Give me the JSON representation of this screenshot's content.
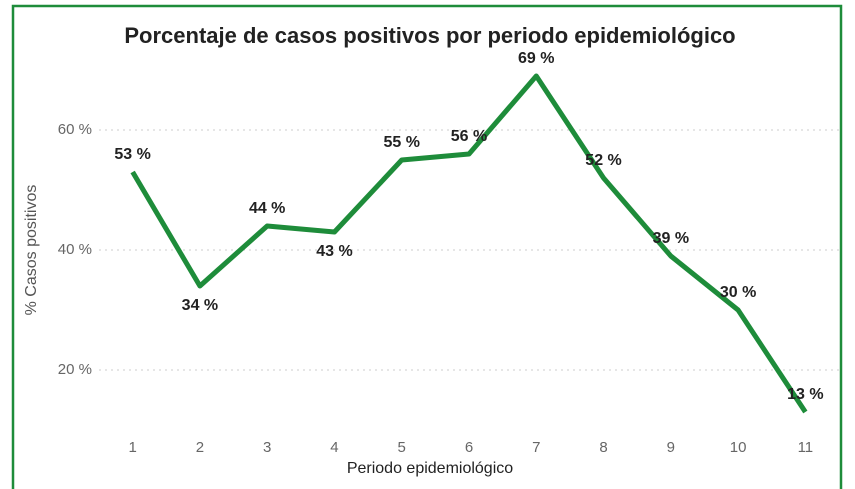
{
  "chart_data": {
    "type": "line",
    "title": "Porcentaje de casos positivos por periodo epidemiológico",
    "x_label": "Periodo epidemiológico",
    "y_label": "% Casos positivos",
    "x": [
      1,
      2,
      3,
      4,
      5,
      6,
      7,
      8,
      9,
      10,
      11
    ],
    "xlim": [
      0.5,
      11.5
    ],
    "xticks": [
      1,
      2,
      3,
      4,
      5,
      6,
      7,
      8,
      9,
      10,
      11
    ],
    "series": [
      {
        "name": "% Casos positivos",
        "color": "#1e8c3a",
        "values": [
          53,
          34,
          44,
          43,
          55,
          56,
          69,
          52,
          39,
          30,
          13
        ],
        "value_labels": [
          "53 %",
          "34 %",
          "44 %",
          "43 %",
          "55 %",
          "56 %",
          "69 %",
          "52 %",
          "39 %",
          "30 %",
          "13 %"
        ]
      }
    ],
    "ylim": [
      10,
      72
    ],
    "yticks": [
      {
        "value": 20,
        "label": "20 %"
      },
      {
        "value": 40,
        "label": "40 %"
      },
      {
        "value": 60,
        "label": "60 %"
      }
    ],
    "grid": true
  }
}
